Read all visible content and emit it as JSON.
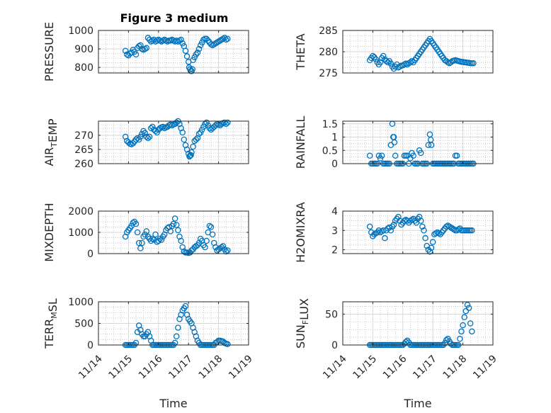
{
  "figure_title": "Figure 3 medium",
  "x_tick_labels": [
    "11/14",
    "11/15",
    "11/16",
    "11/17",
    "11/18",
    "11/19"
  ],
  "x_axis_label": "Time",
  "marker_color": "#0072BD",
  "chart_data": [
    {
      "type": "scatter",
      "title": "Figure 3 medium",
      "ylabel_parts": [
        {
          "t": "PRESSURE"
        }
      ],
      "xlim": [
        14.0,
        19.0
      ],
      "ylim": [
        770,
        1000
      ],
      "yticks": [
        800,
        900,
        1000
      ],
      "x_axis_label": "",
      "grid": "dotted minor + major",
      "x": [
        14.9,
        14.95,
        15.0,
        15.05,
        15.1,
        15.15,
        15.2,
        15.25,
        15.3,
        15.35,
        15.4,
        15.45,
        15.5,
        15.55,
        15.6,
        15.65,
        15.7,
        15.75,
        15.8,
        15.85,
        15.9,
        15.95,
        16.0,
        16.05,
        16.1,
        16.15,
        16.2,
        16.25,
        16.3,
        16.35,
        16.4,
        16.45,
        16.5,
        16.55,
        16.6,
        16.65,
        16.7,
        16.75,
        16.8,
        16.85,
        16.9,
        16.95,
        17.0,
        17.02,
        17.05,
        17.08,
        17.1,
        17.13,
        17.15,
        17.2,
        17.25,
        17.3,
        17.35,
        17.4,
        17.45,
        17.5,
        17.55,
        17.6,
        17.65,
        17.7,
        17.75,
        17.8,
        17.85,
        17.9,
        17.95,
        18.0,
        18.05,
        18.1,
        18.15,
        18.2,
        18.25,
        18.3
      ],
      "y": [
        890,
        870,
        865,
        875,
        880,
        895,
        885,
        870,
        905,
        915,
        920,
        900,
        895,
        900,
        905,
        960,
        950,
        940,
        945,
        950,
        940,
        945,
        950,
        945,
        940,
        945,
        950,
        945,
        940,
        945,
        945,
        950,
        945,
        940,
        945,
        940,
        945,
        950,
        930,
        915,
        890,
        860,
        830,
        800,
        790,
        780,
        780,
        790,
        840,
        855,
        870,
        880,
        900,
        920,
        935,
        950,
        955,
        955,
        945,
        935,
        925,
        920,
        925,
        930,
        935,
        940,
        945,
        950,
        955,
        960,
        950,
        955
      ]
    },
    {
      "type": "scatter",
      "ylabel_parts": [
        {
          "t": "THETA"
        }
      ],
      "xlim": [
        14.0,
        19.0
      ],
      "ylim": [
        275,
        285
      ],
      "yticks": [
        275,
        280,
        285
      ],
      "x": [
        14.9,
        14.95,
        15.0,
        15.05,
        15.1,
        15.15,
        15.2,
        15.25,
        15.3,
        15.35,
        15.4,
        15.45,
        15.5,
        15.55,
        15.6,
        15.65,
        15.7,
        15.75,
        15.8,
        15.85,
        15.9,
        15.95,
        16.0,
        16.05,
        16.1,
        16.15,
        16.2,
        16.25,
        16.3,
        16.35,
        16.4,
        16.45,
        16.5,
        16.55,
        16.6,
        16.65,
        16.7,
        16.75,
        16.8,
        16.85,
        16.9,
        16.95,
        17.0,
        17.05,
        17.1,
        17.15,
        17.2,
        17.25,
        17.3,
        17.35,
        17.4,
        17.45,
        17.5,
        17.55,
        17.6,
        17.65,
        17.7,
        17.75,
        17.8,
        17.85,
        17.9,
        17.95,
        18.0,
        18.05,
        18.1,
        18.15,
        18.2,
        18.25,
        18.3,
        18.35
      ],
      "y": [
        278.0,
        278.5,
        279.0,
        278.7,
        278.2,
        277.5,
        277.0,
        277.5,
        278.5,
        279.0,
        278.2,
        277.8,
        277.5,
        277.8,
        277.2,
        276.5,
        276.0,
        276.5,
        277.0,
        276.3,
        276.5,
        276.7,
        276.8,
        277.0,
        277.2,
        277.0,
        277.3,
        277.5,
        277.8,
        277.5,
        278.0,
        278.5,
        279.0,
        279.5,
        280.0,
        280.5,
        281.0,
        281.5,
        282.0,
        282.5,
        283.0,
        282.5,
        282.0,
        281.5,
        281.0,
        280.5,
        280.0,
        279.5,
        279.0,
        278.5,
        278.0,
        277.8,
        277.5,
        277.3,
        277.5,
        277.8,
        277.9,
        278.0,
        277.9,
        277.8,
        277.7,
        277.6,
        277.6,
        277.5,
        277.5,
        277.4,
        277.4,
        277.3,
        277.3,
        277.3
      ]
    },
    {
      "type": "scatter",
      "ylabel_parts": [
        {
          "t": "AIR"
        },
        {
          "t": "T",
          "sub": true
        },
        {
          "t": "EMP"
        }
      ],
      "xlim": [
        14.0,
        19.0
      ],
      "ylim": [
        260,
        275
      ],
      "yticks": [
        260,
        265,
        270
      ],
      "x": [
        14.9,
        14.95,
        15.0,
        15.05,
        15.1,
        15.15,
        15.2,
        15.25,
        15.3,
        15.35,
        15.4,
        15.45,
        15.5,
        15.55,
        15.6,
        15.65,
        15.7,
        15.75,
        15.8,
        15.85,
        15.9,
        15.95,
        16.0,
        16.05,
        16.1,
        16.15,
        16.2,
        16.25,
        16.3,
        16.35,
        16.4,
        16.45,
        16.5,
        16.55,
        16.6,
        16.65,
        16.7,
        16.75,
        16.8,
        16.85,
        16.9,
        16.95,
        17.0,
        17.03,
        17.05,
        17.08,
        17.1,
        17.15,
        17.2,
        17.25,
        17.3,
        17.35,
        17.4,
        17.45,
        17.5,
        17.55,
        17.6,
        17.65,
        17.7,
        17.75,
        17.8,
        17.85,
        17.9,
        17.95,
        18.0,
        18.05,
        18.1,
        18.15,
        18.2,
        18.25,
        18.3
      ],
      "y": [
        269.5,
        268.0,
        267.5,
        267.0,
        266.8,
        267.2,
        267.8,
        268.5,
        269.0,
        268.5,
        269.5,
        270.5,
        271.5,
        270.8,
        269.5,
        269.0,
        269.5,
        272.5,
        273.0,
        272.0,
        271.5,
        271.0,
        272.0,
        272.5,
        272.8,
        273.0,
        272.5,
        272.8,
        273.0,
        273.5,
        273.8,
        273.5,
        273.8,
        274.0,
        274.5,
        275.0,
        274.0,
        272.5,
        271.0,
        268.5,
        266.5,
        265.0,
        263.5,
        262.5,
        262.8,
        263.0,
        264.0,
        266.0,
        268.0,
        268.5,
        269.0,
        270.5,
        271.0,
        272.0,
        273.0,
        274.0,
        274.5,
        273.5,
        272.5,
        272.0,
        272.5,
        273.0,
        273.5,
        274.0,
        273.8,
        273.5,
        274.0,
        274.3,
        274.5,
        274.0,
        274.5
      ]
    },
    {
      "type": "scatter",
      "ylabel_parts": [
        {
          "t": "RAINFALL"
        }
      ],
      "xlim": [
        14.0,
        19.0
      ],
      "ylim": [
        0,
        1.6
      ],
      "yticks": [
        0,
        0.5,
        1,
        1.5
      ],
      "ytick_labels": [
        "0",
        "0.5",
        "1",
        "1.5"
      ],
      "x": [
        14.9,
        14.95,
        15.0,
        15.05,
        15.1,
        15.15,
        15.2,
        15.25,
        15.3,
        15.35,
        15.4,
        15.45,
        15.5,
        15.55,
        15.6,
        15.65,
        15.68,
        15.7,
        15.72,
        15.75,
        15.8,
        15.85,
        15.9,
        15.95,
        16.0,
        16.05,
        16.1,
        16.15,
        16.2,
        16.25,
        16.3,
        16.35,
        16.4,
        16.45,
        16.5,
        16.55,
        16.6,
        16.65,
        16.7,
        16.75,
        16.8,
        16.85,
        16.9,
        16.93,
        16.95,
        17.0,
        17.05,
        17.1,
        17.15,
        17.2,
        17.25,
        17.3,
        17.35,
        17.4,
        17.45,
        17.5,
        17.55,
        17.6,
        17.65,
        17.7,
        17.75,
        17.8,
        17.85,
        17.9,
        17.95,
        18.0,
        18.05,
        18.1,
        18.15,
        18.2,
        18.25,
        18.3,
        18.35
      ],
      "y": [
        0.3,
        0,
        0,
        0,
        0,
        0,
        0.3,
        0.2,
        0.3,
        0,
        0,
        0,
        0,
        0,
        0.7,
        1.5,
        1.0,
        1.0,
        0.8,
        0.3,
        0,
        0,
        0,
        0,
        0,
        0.3,
        0.3,
        0.3,
        0,
        0.2,
        0.4,
        0.3,
        0,
        0,
        0,
        0.5,
        0.4,
        0,
        0,
        0,
        0,
        0.7,
        1.1,
        0.9,
        0.7,
        0,
        0,
        0,
        0,
        0,
        0,
        0,
        0,
        0,
        0,
        0,
        0,
        0,
        0,
        0,
        0.3,
        0.3,
        0,
        0,
        0,
        0,
        0,
        0,
        0,
        0,
        0,
        0,
        0
      ]
    },
    {
      "type": "scatter",
      "ylabel_parts": [
        {
          "t": "MIXDEPTH"
        }
      ],
      "xlim": [
        14.0,
        19.0
      ],
      "ylim": [
        0,
        2000
      ],
      "yticks": [
        0,
        1000,
        2000
      ],
      "x": [
        14.9,
        14.95,
        15.0,
        15.05,
        15.1,
        15.15,
        15.2,
        15.25,
        15.3,
        15.35,
        15.4,
        15.45,
        15.5,
        15.55,
        15.6,
        15.65,
        15.7,
        15.75,
        15.8,
        15.85,
        15.9,
        15.95,
        16.0,
        16.05,
        16.1,
        16.15,
        16.2,
        16.25,
        16.3,
        16.35,
        16.4,
        16.45,
        16.5,
        16.55,
        16.6,
        16.65,
        16.7,
        16.75,
        16.8,
        16.85,
        16.9,
        16.95,
        17.0,
        17.05,
        17.1,
        17.15,
        17.2,
        17.25,
        17.3,
        17.35,
        17.4,
        17.45,
        17.5,
        17.55,
        17.6,
        17.65,
        17.7,
        17.75,
        17.8,
        17.85,
        17.9,
        17.95,
        18.0,
        18.05,
        18.1,
        18.15,
        18.2,
        18.25,
        18.3
      ],
      "y": [
        800,
        1000,
        1100,
        1200,
        1300,
        1450,
        1500,
        1400,
        1000,
        500,
        250,
        500,
        800,
        900,
        1050,
        800,
        700,
        600,
        700,
        650,
        900,
        550,
        600,
        700,
        650,
        800,
        900,
        1100,
        1200,
        1250,
        1050,
        1300,
        1400,
        1650,
        1350,
        1100,
        800,
        600,
        300,
        100,
        50,
        50,
        30,
        50,
        150,
        200,
        300,
        350,
        400,
        500,
        700,
        600,
        400,
        300,
        600,
        1000,
        1300,
        1250,
        900,
        500,
        300,
        150,
        200,
        250,
        300,
        350,
        200,
        100,
        150
      ]
    },
    {
      "type": "scatter",
      "ylabel_parts": [
        {
          "t": "H2OMIXRA"
        }
      ],
      "xlim": [
        14.0,
        19.0
      ],
      "ylim": [
        1.8,
        4.0
      ],
      "yticks": [
        2,
        3,
        4
      ],
      "x": [
        14.9,
        14.95,
        15.0,
        15.05,
        15.1,
        15.15,
        15.2,
        15.25,
        15.3,
        15.35,
        15.4,
        15.45,
        15.5,
        15.55,
        15.6,
        15.65,
        15.7,
        15.75,
        15.8,
        15.85,
        15.9,
        15.95,
        16.0,
        16.05,
        16.1,
        16.15,
        16.2,
        16.25,
        16.3,
        16.35,
        16.4,
        16.45,
        16.5,
        16.55,
        16.6,
        16.65,
        16.7,
        16.75,
        16.8,
        16.85,
        16.9,
        16.95,
        17.0,
        17.05,
        17.1,
        17.15,
        17.2,
        17.25,
        17.3,
        17.35,
        17.4,
        17.45,
        17.5,
        17.55,
        17.6,
        17.65,
        17.7,
        17.75,
        17.8,
        17.85,
        17.9,
        17.95,
        18.0,
        18.05,
        18.1,
        18.15,
        18.2,
        18.25,
        18.3
      ],
      "y": [
        3.2,
        2.9,
        2.7,
        2.8,
        2.85,
        2.9,
        3.0,
        2.9,
        2.95,
        3.0,
        2.6,
        3.0,
        3.1,
        3.15,
        3.0,
        3.2,
        3.3,
        3.5,
        3.6,
        3.7,
        3.5,
        3.3,
        3.4,
        3.5,
        3.55,
        3.5,
        3.4,
        3.5,
        3.55,
        3.6,
        3.5,
        3.4,
        3.6,
        3.7,
        3.5,
        3.2,
        3.0,
        2.6,
        2.2,
        2.0,
        1.9,
        2.1,
        2.4,
        2.8,
        2.85,
        2.9,
        2.85,
        2.8,
        2.9,
        3.0,
        3.1,
        3.2,
        3.25,
        3.2,
        3.15,
        3.1,
        3.05,
        3.0,
        3.0,
        3.05,
        3.1,
        3.0,
        3.0,
        3.0,
        3.0,
        3.0,
        3.0,
        3.0,
        3.0
      ]
    },
    {
      "type": "scatter",
      "ylabel_parts": [
        {
          "t": "TERR"
        },
        {
          "t": "M",
          "sub": true
        },
        {
          "t": "SL"
        }
      ],
      "xlim": [
        14.0,
        19.0
      ],
      "ylim": [
        0,
        1000
      ],
      "yticks": [
        0,
        500,
        1000
      ],
      "x_axis_label": "Time",
      "x_tick_labels": [
        "11/14",
        "11/15",
        "11/16",
        "11/17",
        "11/18",
        "11/19"
      ],
      "x": [
        14.9,
        14.95,
        15.0,
        15.05,
        15.1,
        15.15,
        15.2,
        15.25,
        15.3,
        15.35,
        15.4,
        15.45,
        15.5,
        15.55,
        15.6,
        15.65,
        15.7,
        15.75,
        15.8,
        15.85,
        15.9,
        15.95,
        16.0,
        16.05,
        16.1,
        16.15,
        16.2,
        16.25,
        16.3,
        16.35,
        16.4,
        16.45,
        16.5,
        16.55,
        16.6,
        16.65,
        16.7,
        16.75,
        16.8,
        16.85,
        16.9,
        16.95,
        17.0,
        17.05,
        17.1,
        17.15,
        17.2,
        17.25,
        17.3,
        17.35,
        17.4,
        17.45,
        17.5,
        17.55,
        17.6,
        17.65,
        17.7,
        17.75,
        17.8,
        17.85,
        17.9,
        17.95,
        18.0,
        18.05,
        18.1,
        18.15,
        18.2,
        18.25,
        18.3
      ],
      "y": [
        0,
        0,
        0,
        0,
        0,
        0,
        0,
        50,
        300,
        450,
        350,
        250,
        200,
        200,
        250,
        300,
        200,
        100,
        0,
        0,
        0,
        0,
        0,
        0,
        0,
        0,
        0,
        0,
        0,
        0,
        0,
        0,
        0,
        50,
        200,
        400,
        600,
        700,
        800,
        850,
        900,
        700,
        600,
        550,
        500,
        400,
        300,
        200,
        100,
        50,
        0,
        0,
        0,
        0,
        0,
        0,
        0,
        0,
        0,
        0,
        50,
        70,
        100,
        100,
        90,
        80,
        50,
        30,
        20
      ]
    },
    {
      "type": "scatter",
      "ylabel_parts": [
        {
          "t": "SUN"
        },
        {
          "t": "F",
          "sub": true
        },
        {
          "t": "LUX"
        }
      ],
      "xlim": [
        14.0,
        19.0
      ],
      "ylim": [
        0,
        70
      ],
      "yticks": [
        0,
        50
      ],
      "x_axis_label": "Time",
      "x_tick_labels": [
        "11/14",
        "11/15",
        "11/16",
        "11/17",
        "11/18",
        "11/19"
      ],
      "x": [
        14.9,
        14.95,
        15.0,
        15.05,
        15.1,
        15.15,
        15.2,
        15.25,
        15.3,
        15.35,
        15.4,
        15.45,
        15.5,
        15.55,
        15.6,
        15.65,
        15.7,
        15.75,
        15.8,
        15.85,
        15.9,
        15.95,
        16.0,
        16.05,
        16.1,
        16.15,
        16.2,
        16.25,
        16.3,
        16.35,
        16.4,
        16.45,
        16.5,
        16.55,
        16.6,
        16.65,
        16.7,
        16.75,
        16.8,
        16.85,
        16.9,
        16.95,
        17.0,
        17.05,
        17.1,
        17.15,
        17.2,
        17.25,
        17.3,
        17.35,
        17.4,
        17.45,
        17.5,
        17.55,
        17.6,
        17.65,
        17.7,
        17.75,
        17.8,
        17.85,
        17.9,
        17.95,
        18.0,
        18.05,
        18.1,
        18.15,
        18.2,
        18.25,
        18.3
      ],
      "y": [
        0,
        0,
        0,
        0,
        0,
        0,
        0,
        0,
        0,
        0,
        0,
        0,
        0,
        0,
        0,
        0,
        0,
        0,
        0,
        0,
        0,
        0,
        0,
        2,
        5,
        7,
        4,
        0,
        0,
        0,
        0,
        0,
        0,
        0,
        0,
        0,
        0,
        0,
        0,
        0,
        0,
        0,
        0,
        0,
        0,
        0,
        0,
        0,
        0,
        0,
        3,
        8,
        10,
        6,
        2,
        0,
        0,
        0,
        0,
        0,
        10,
        22,
        32,
        45,
        55,
        65,
        60,
        35,
        22
      ]
    }
  ]
}
